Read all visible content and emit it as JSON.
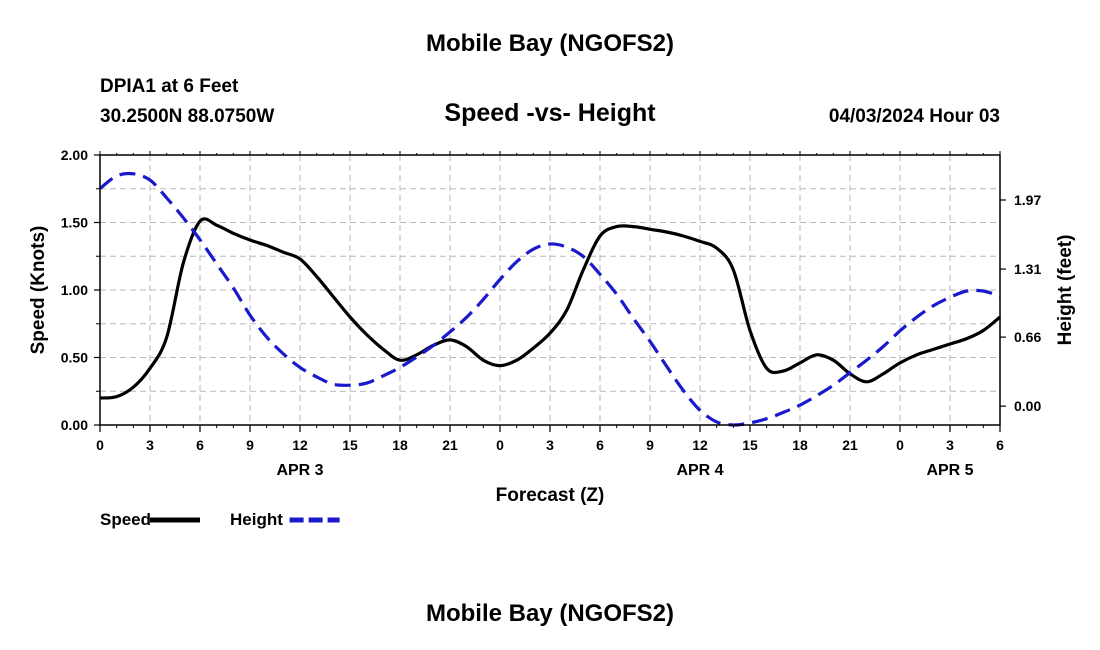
{
  "header": {
    "title": "Mobile Bay (NGOFS2)",
    "station": "DPIA1 at 6 Feet",
    "coords": "30.2500N  88.0750W",
    "plot_title": "Speed -vs- Height",
    "datetime": "04/03/2024 Hour 03"
  },
  "footer": {
    "title": "Mobile Bay (NGOFS2)"
  },
  "chart_data": {
    "type": "line",
    "title": "Speed -vs- Height",
    "xlabel": "Forecast (Z)",
    "ylabel": "Speed (Knots)",
    "y2label": "Height (feet)",
    "x_range": [
      0,
      54
    ],
    "x_tick_labels": [
      "0",
      "3",
      "6",
      "9",
      "12",
      "15",
      "18",
      "21",
      "0",
      "3",
      "6",
      "9",
      "12",
      "15",
      "18",
      "21",
      "0",
      "3",
      "6"
    ],
    "date_labels": [
      {
        "label": "APR 3",
        "hour": 12
      },
      {
        "label": "APR 4",
        "hour": 36
      },
      {
        "label": "APR 5",
        "hour": 51
      }
    ],
    "ylim": [
      0,
      2.0
    ],
    "y_tick_labels": [
      "0.00",
      "0.50",
      "1.00",
      "1.50",
      "2.00"
    ],
    "y2lim": [
      -0.18,
      2.4
    ],
    "y2_tick_labels": [
      "0.00",
      "0.66",
      "1.31",
      "1.97"
    ],
    "grid": true,
    "legend_position": "bottom-left",
    "series": [
      {
        "name": "Speed",
        "axis": "left",
        "color": "#000000",
        "style": "solid",
        "x": [
          0,
          1,
          2,
          3,
          4,
          5,
          6,
          7,
          8,
          9,
          10,
          11,
          12,
          13,
          14,
          15,
          16,
          17,
          18,
          19,
          20,
          21,
          22,
          23,
          24,
          25,
          26,
          27,
          28,
          29,
          30,
          31,
          32,
          33,
          34,
          35,
          36,
          37,
          38,
          39,
          40,
          41,
          42,
          43,
          44,
          45,
          46,
          47,
          48,
          49,
          50,
          51,
          52,
          53,
          54
        ],
        "values": [
          0.2,
          0.21,
          0.28,
          0.42,
          0.65,
          1.2,
          1.51,
          1.48,
          1.42,
          1.37,
          1.33,
          1.28,
          1.23,
          1.1,
          0.95,
          0.8,
          0.67,
          0.56,
          0.48,
          0.52,
          0.59,
          0.63,
          0.58,
          0.48,
          0.44,
          0.48,
          0.57,
          0.68,
          0.85,
          1.15,
          1.4,
          1.47,
          1.47,
          1.45,
          1.43,
          1.4,
          1.36,
          1.31,
          1.15,
          0.7,
          0.42,
          0.4,
          0.46,
          0.52,
          0.48,
          0.38,
          0.32,
          0.38,
          0.46,
          0.52,
          0.56,
          0.6,
          0.64,
          0.7,
          0.8
        ]
      },
      {
        "name": "Height",
        "axis": "right",
        "color": "#1a1acc",
        "style": "dashed",
        "x": [
          0,
          1,
          2,
          3,
          4,
          5,
          6,
          7,
          8,
          9,
          10,
          11,
          12,
          13,
          14,
          15,
          16,
          17,
          18,
          19,
          20,
          21,
          22,
          23,
          24,
          25,
          26,
          27,
          28,
          29,
          30,
          31,
          32,
          33,
          34,
          35,
          36,
          37,
          38,
          39,
          40,
          41,
          42,
          43,
          44,
          45,
          46,
          47,
          48,
          49,
          50,
          51,
          52,
          53,
          54
        ],
        "values": [
          2.08,
          2.2,
          2.22,
          2.16,
          1.99,
          1.8,
          1.59,
          1.36,
          1.13,
          0.87,
          0.66,
          0.5,
          0.37,
          0.28,
          0.21,
          0.2,
          0.22,
          0.29,
          0.37,
          0.47,
          0.58,
          0.71,
          0.85,
          1.02,
          1.21,
          1.38,
          1.5,
          1.55,
          1.52,
          1.43,
          1.26,
          1.07,
          0.84,
          0.62,
          0.38,
          0.15,
          -0.04,
          -0.15,
          -0.18,
          -0.16,
          -0.12,
          -0.06,
          0.01,
          0.1,
          0.2,
          0.32,
          0.44,
          0.57,
          0.72,
          0.85,
          0.96,
          1.04,
          1.1,
          1.1,
          1.05
        ]
      }
    ],
    "legend": [
      {
        "label": "Speed",
        "color": "#000000",
        "style": "solid"
      },
      {
        "label": "Height",
        "color": "#1a1acc",
        "style": "dashed"
      }
    ]
  }
}
